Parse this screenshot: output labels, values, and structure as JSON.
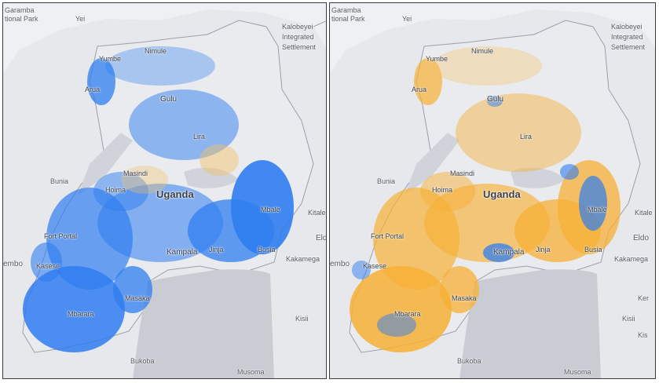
{
  "country": "Uganda",
  "colors": {
    "background": "#eef0f3",
    "land": "#e6e8ec",
    "lake": "#c9ccd2",
    "border": "#9aa0a8",
    "primary_layer": "#2f7df0",
    "secondary_layer": "#f7b035",
    "secondary_layer_light": "#f6c163"
  },
  "panels": [
    {
      "name": "blue-density-map",
      "dominant_color": "#2f7df0",
      "labels": {
        "garamba": "Garamba",
        "garamba2": "tional Park",
        "yei": "Yei",
        "kalobeyei": "Kalobeyei",
        "kalobeyei2": "Integrated",
        "kalobeyei3": "Settlement",
        "yumbe": "Yumbe",
        "nimule": "Nimule",
        "arua": "Arua",
        "gulu": "Gulu",
        "lira": "Lira",
        "bunia": "Bunia",
        "masindi": "Masindi",
        "hoima": "Hoima",
        "uganda": "Uganda",
        "mbale": "Mbale",
        "kitale": "Kitale",
        "fort_portal": "Fort Portal",
        "eldo": "Eld",
        "kampala": "Kampala",
        "jinja": "Jinja",
        "busia": "Busia",
        "kakamega": "Kakamega",
        "embo": "embo",
        "kasese": "Kasese",
        "masaka": "Masaka",
        "mbarara": "Mbarara",
        "kisii": "Kisii",
        "bukoba": "Bukoba",
        "musoma": "Musoma"
      }
    },
    {
      "name": "orange-density-map",
      "dominant_color": "#f7b035",
      "labels": {
        "garamba": "Garamba",
        "garamba2": "tional Park",
        "yei": "Yei",
        "kalobeyei": "Kalobeyei",
        "kalobeyei2": "Integrated",
        "kalobeyei3": "Settlement",
        "yumbe": "Yumbe",
        "nimule": "Nimule",
        "arua": "Arua",
        "gulu": "Gulu",
        "lira": "Lira",
        "bunia": "Bunia",
        "masindi": "Masindi",
        "hoima": "Hoima",
        "uganda": "Uganda",
        "mbale": "Mbale",
        "kitale": "Kitale",
        "fort_portal": "Fort Portal",
        "eldo": "Eldo",
        "kampala": "Kampala",
        "jinja": "Jinja",
        "busia": "Busia",
        "kakamega": "Kakamega",
        "embo": "embo",
        "kasese": "Kasese",
        "masaka": "Masaka",
        "mbarara": "Mbarara",
        "ker": "Ker",
        "kisii": "Kisii",
        "kis": "Kis",
        "bukoba": "Bukoba",
        "musoma": "Musoma"
      }
    }
  ]
}
